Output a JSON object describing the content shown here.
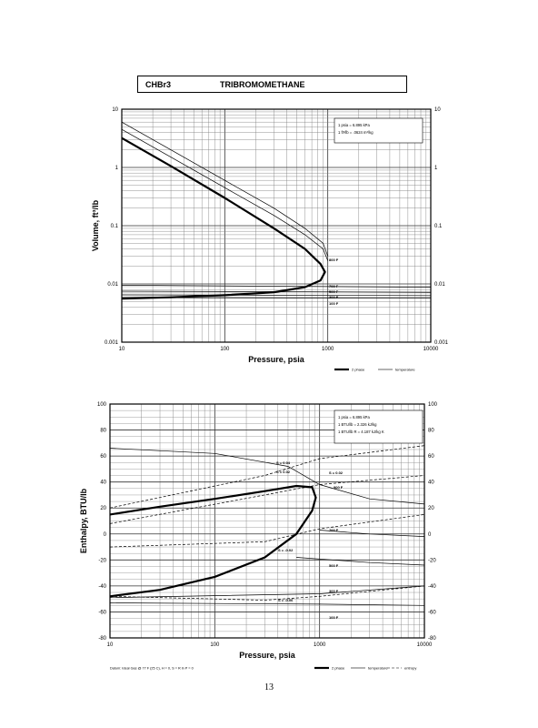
{
  "header": {
    "formula": "CHBr3",
    "name": "TRIBROMOMETHANE"
  },
  "page_number": "13",
  "chart_data": [
    {
      "type": "line",
      "title": "",
      "xlabel": "Pressure,  psia",
      "ylabel": "Volume, ft^3/lb",
      "xscale": "log",
      "yscale": "log",
      "xlim": [
        10,
        10000
      ],
      "ylim": [
        0.001,
        10
      ],
      "x_tick_labels": [
        "10",
        "100",
        "1000",
        "10000"
      ],
      "y_tick_labels": [
        "0.001",
        "0.01",
        "0.1",
        "1",
        "10"
      ],
      "grid": true,
      "legend": {
        "placement": "bottom-right",
        "entries": [
          "2 phase",
          "temperature"
        ]
      },
      "annotation_box": [
        "1 psia = 6.895 kPa",
        "1 ft^3/lb = .0624 m^3/kg"
      ],
      "series": [
        {
          "name": "2 phase",
          "x": [
            10,
            30,
            100,
            300,
            600,
            850,
            940,
            850,
            600,
            300,
            100,
            30,
            10
          ],
          "y": [
            3.2,
            1.05,
            0.3,
            0.09,
            0.04,
            0.022,
            0.016,
            0.0115,
            0.0088,
            0.0072,
            0.0064,
            0.0059,
            0.0056
          ]
        }
      ],
      "temperature_lines": [
        {
          "label": "800 F",
          "x": [
            10,
            30,
            100,
            300,
            600,
            900,
            1000
          ],
          "y": [
            6,
            2,
            0.6,
            0.2,
            0.09,
            0.05,
            0.03
          ]
        },
        {
          "label": "",
          "x": [
            10,
            30,
            100,
            300,
            600,
            900,
            1000
          ],
          "y": [
            4.5,
            1.5,
            0.45,
            0.15,
            0.07,
            0.04,
            0.025
          ]
        },
        {
          "label": "700 F",
          "x": [
            10,
            10000
          ],
          "y": [
            0.0095,
            0.0088
          ]
        },
        {
          "label": "500 F",
          "x": [
            10,
            10000
          ],
          "y": [
            0.0075,
            0.0072
          ]
        },
        {
          "label": "300 F",
          "x": [
            10,
            10000
          ],
          "y": [
            0.0065,
            0.0063
          ]
        },
        {
          "label": "100 F",
          "x": [
            10,
            10000
          ],
          "y": [
            0.0058,
            0.0057
          ]
        }
      ],
      "annotations": [
        "800 F",
        "700 F",
        "500 F",
        "300 F",
        "100 F"
      ]
    },
    {
      "type": "line",
      "title": "",
      "xlabel": "Pressure,  psia",
      "ylabel": "Enthalpy, BTU/lb",
      "xscale": "log",
      "yscale": "linear",
      "xlim": [
        10,
        10000
      ],
      "ylim": [
        -80,
        100
      ],
      "x_tick_labels": [
        "10",
        "100",
        "1000",
        "10000"
      ],
      "y_tick_labels": [
        "100",
        "80",
        "60",
        "40",
        "20",
        "0",
        "-20",
        "-40",
        "-60",
        "-80"
      ],
      "grid": true,
      "legend": {
        "placement": "bottom-right",
        "entries": [
          "2 phase",
          "temperature",
          "entropy"
        ]
      },
      "annotation_box": [
        "1 psia = 6.895 kPa",
        "1 BTU/lb = 2.326 kJ/kg",
        "1 BTU/lb R = 4.187 kJ/kg K"
      ],
      "footnote": "Datum: Ideal Gas @ 77 F (25 C),  H = 0,  S = R ln P = 0",
      "series": [
        {
          "name": "2 phase",
          "x": [
            10,
            30,
            100,
            300,
            600,
            850,
            920,
            850,
            600,
            300,
            100,
            30,
            10
          ],
          "y": [
            15,
            21,
            27,
            33,
            37,
            36,
            28,
            18,
            0,
            -18,
            -33,
            -43,
            -48
          ]
        }
      ],
      "temperature_lines": [
        {
          "label": "900 F",
          "x": [
            10,
            100,
            500,
            1000,
            3000,
            10000
          ],
          "y": [
            66,
            62,
            52,
            38,
            27,
            23
          ]
        },
        {
          "label": "700 F",
          "x": [
            1000,
            3000,
            10000
          ],
          "y": [
            3,
            0,
            -2
          ]
        },
        {
          "label": "500 F",
          "x": [
            600,
            3000,
            10000
          ],
          "y": [
            -18,
            -22,
            -24
          ]
        },
        {
          "label": "300 F",
          "x": [
            10,
            1000,
            10000
          ],
          "y": [
            -49,
            -46,
            -40
          ]
        },
        {
          "label": "100 F",
          "x": [
            10,
            1000,
            10000
          ],
          "y": [
            -53,
            -54,
            -55
          ]
        }
      ],
      "entropy_lines": [
        {
          "label": "S = 0.04",
          "x": [
            10,
            300,
            1000,
            10000
          ],
          "y": [
            20,
            45,
            58,
            68
          ]
        },
        {
          "label": "S = 0.02",
          "x": [
            10,
            300,
            1000,
            10000
          ],
          "y": [
            8,
            30,
            38,
            45
          ]
        },
        {
          "label": "S = -0.02",
          "x": [
            10,
            300,
            1000,
            10000
          ],
          "y": [
            -10,
            -6,
            4,
            15
          ]
        },
        {
          "label": "S = -0.06",
          "x": [
            10,
            300,
            1000,
            10000
          ],
          "y": [
            -48,
            -51,
            -48,
            -40
          ]
        }
      ],
      "annotations": [
        "S = 0.04",
        "S = 0.02",
        "S = 0.02",
        "900 F",
        "700 F",
        "S = -0.02",
        "500 F",
        "300 F",
        "S = -0.06",
        "100 F"
      ]
    }
  ]
}
